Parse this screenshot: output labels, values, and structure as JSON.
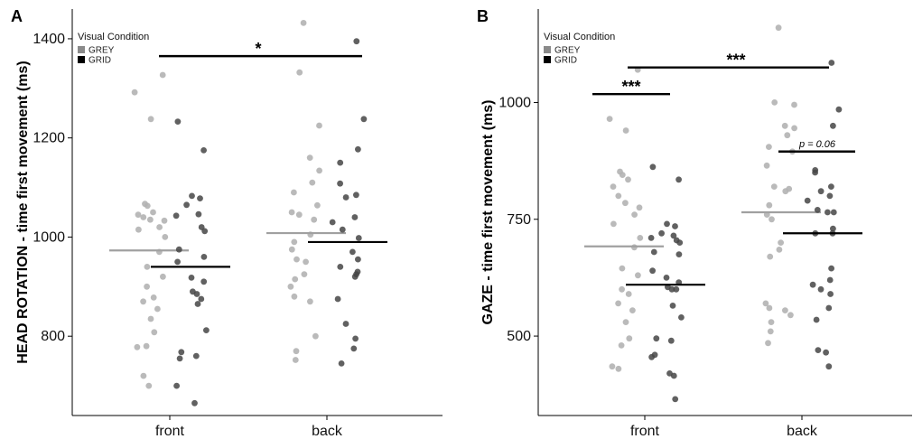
{
  "chart_data": [
    {
      "type": "scatter",
      "panel": "A",
      "ylabel": "HEAD ROTATION - time first movement (ms)",
      "categories": [
        "front",
        "back"
      ],
      "ylim": [
        640,
        1460
      ],
      "yticks": [
        800,
        1000,
        1200,
        1400
      ],
      "legend": {
        "title": "Visual Condition",
        "placement": "top-left",
        "entries": [
          "GREY",
          "GRID"
        ]
      },
      "colors": {
        "GREY": "#b3b3b3",
        "GRID": "#454545"
      },
      "series": [
        {
          "name": "GREY",
          "medians": {
            "front": 973,
            "back": 1008
          },
          "points": {
            "front": [
              1327,
              1292,
              1238,
              1067,
              1063,
              1050,
              1045,
              1040,
              1035,
              1033,
              1020,
              1015,
              1000,
              970,
              940,
              920,
              900,
              878,
              870,
              855,
              835,
              808,
              780,
              778,
              720,
              700
            ],
            "back": [
              1432,
              1332,
              1225,
              1160,
              1134,
              1110,
              1090,
              1064,
              1050,
              1045,
              1035,
              1005,
              990,
              975,
              955,
              950,
              925,
              915,
              900,
              880,
              870,
              800,
              770,
              752
            ]
          }
        },
        {
          "name": "GRID",
          "medians": {
            "front": 940,
            "back": 990
          },
          "points": {
            "front": [
              1233,
              1175,
              1083,
              1078,
              1065,
              1046,
              1043,
              1020,
              1012,
              975,
              960,
              950,
              918,
              910,
              890,
              885,
              875,
              865,
              812,
              768,
              760,
              755,
              700,
              665
            ],
            "back": [
              1395,
              1238,
              1177,
              1150,
              1108,
              1085,
              1080,
              1040,
              1030,
              1015,
              998,
              970,
              955,
              940,
              930,
              925,
              920,
              875,
              825,
              795,
              775,
              745
            ]
          }
        }
      ],
      "annotations": [
        {
          "label": "*",
          "from": "front",
          "to": "back",
          "y": 1365
        }
      ]
    },
    {
      "type": "scatter",
      "panel": "B",
      "ylabel": "GAZE - time first movement (ms)",
      "categories": [
        "front",
        "back"
      ],
      "ylim": [
        330,
        1200
      ],
      "yticks": [
        500,
        750,
        1000
      ],
      "legend": {
        "title": "Visual Condition",
        "placement": "top-left",
        "entries": [
          "GREY",
          "GRID"
        ]
      },
      "colors": {
        "GREY": "#b3b3b3",
        "GRID": "#454545"
      },
      "series": [
        {
          "name": "GREY",
          "medians": {
            "front": 692,
            "back": 765
          },
          "points": {
            "front": [
              1070,
              965,
              940,
              852,
              845,
              835,
              820,
              800,
              785,
              775,
              760,
              740,
              710,
              690,
              645,
              630,
              600,
              590,
              570,
              555,
              530,
              495,
              480,
              435,
              430
            ],
            "back": [
              1160,
              1000,
              995,
              950,
              945,
              930,
              905,
              895,
              865,
              820,
              815,
              810,
              780,
              760,
              750,
              700,
              685,
              670,
              570,
              560,
              555,
              545,
              530,
              510,
              485
            ]
          }
        },
        {
          "name": "GRID",
          "medians": {
            "front": 610,
            "back": 720
          },
          "points": {
            "front": [
              862,
              835,
              740,
              735,
              720,
              715,
              710,
              705,
              700,
              680,
              675,
              640,
              625,
              615,
              605,
              600,
              600,
              565,
              540,
              495,
              490,
              460,
              455,
              420,
              415,
              365
            ],
            "back": [
              1085,
              985,
              950,
              855,
              850,
              820,
              810,
              800,
              790,
              770,
              765,
              765,
              730,
              720,
              720,
              645,
              620,
              610,
              600,
              590,
              560,
              535,
              470,
              465,
              435
            ]
          }
        }
      ],
      "annotations": [
        {
          "label": "***",
          "from": "front",
          "to": "back",
          "y": 1075
        },
        {
          "label": "***",
          "group": "front",
          "y": 1018
        },
        {
          "label": "p = 0.06",
          "group": "back",
          "y": 895
        }
      ]
    }
  ]
}
